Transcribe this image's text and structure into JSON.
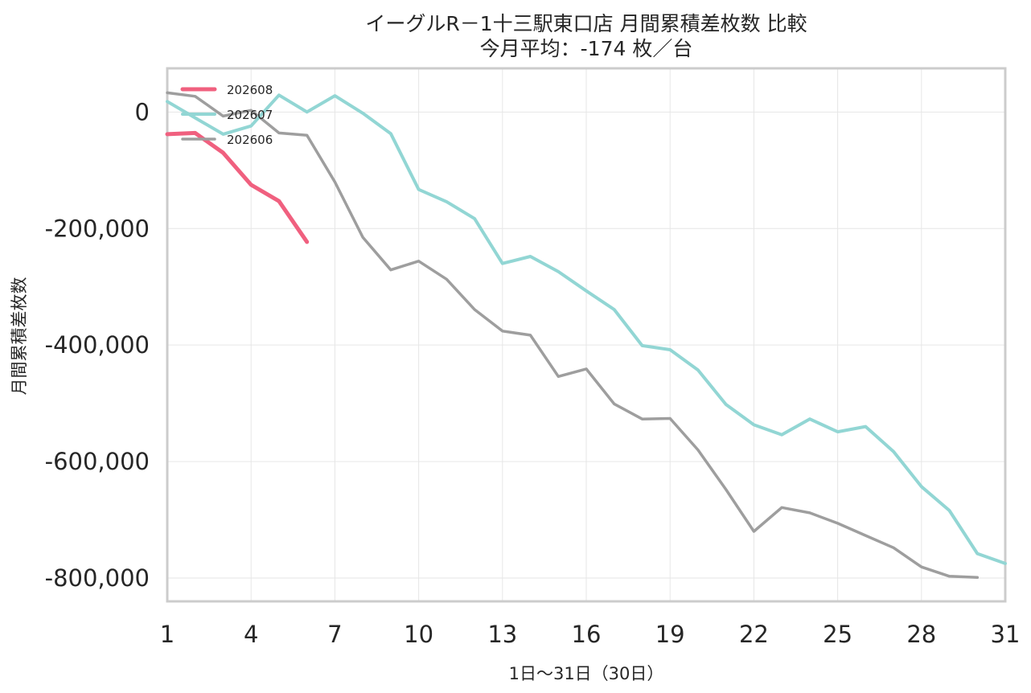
{
  "chart_data": {
    "type": "line",
    "title": "イーグルR－1十三駅東口店 月間累積差枚数 比較",
    "subtitle": "今月平均：-174 枚／台",
    "xlabel": "1日～31日（30日）",
    "ylabel": "月間累積差枚数",
    "xlim": [
      1,
      31
    ],
    "ylim": [
      -840000,
      75000
    ],
    "x_ticks": [
      1,
      4,
      7,
      10,
      13,
      16,
      19,
      22,
      25,
      28,
      31
    ],
    "y_ticks": [
      0,
      -200000,
      -400000,
      -600000,
      -800000
    ],
    "y_tick_labels": [
      "0",
      "-200,000",
      "-400,000",
      "-600,000",
      "-800,000"
    ],
    "grid": true,
    "legend_position": "top-left",
    "series": [
      {
        "name": "202608",
        "color": "#f0607f",
        "x": [
          1,
          2,
          3,
          4,
          5,
          6
        ],
        "values": [
          -38000,
          -36000,
          -70000,
          -125000,
          -153000,
          -223000
        ]
      },
      {
        "name": "202607",
        "color": "#92d6d4",
        "x": [
          1,
          2,
          3,
          4,
          5,
          6,
          7,
          8,
          9,
          10,
          11,
          12,
          13,
          14,
          15,
          16,
          17,
          18,
          19,
          20,
          21,
          22,
          23,
          24,
          25,
          26,
          27,
          28,
          29,
          30,
          31
        ],
        "values": [
          18000,
          -10000,
          -38000,
          -24000,
          29000,
          0,
          28000,
          -2000,
          -37000,
          -133000,
          -154000,
          -183000,
          -260000,
          -248000,
          -274000,
          -307000,
          -339000,
          -401000,
          -408000,
          -443000,
          -502000,
          -537000,
          -554000,
          -527000,
          -549000,
          -540000,
          -583000,
          -643000,
          -684000,
          -758000,
          -775000
        ]
      },
      {
        "name": "202606",
        "color": "#9e9e9e",
        "x": [
          1,
          2,
          3,
          4,
          5,
          6,
          7,
          8,
          9,
          10,
          11,
          12,
          13,
          14,
          15,
          16,
          17,
          18,
          19,
          20,
          21,
          22,
          23,
          24,
          25,
          26,
          27,
          28,
          29,
          30
        ],
        "values": [
          33000,
          27000,
          -7000,
          3000,
          -36000,
          -40000,
          -120000,
          -215000,
          -271000,
          -256000,
          -287000,
          -339000,
          -376000,
          -383000,
          -454000,
          -441000,
          -501000,
          -527000,
          -526000,
          -580000,
          -648000,
          -720000,
          -679000,
          -688000,
          -706000,
          -727000,
          -748000,
          -781000,
          -797000,
          -799000
        ]
      }
    ]
  }
}
